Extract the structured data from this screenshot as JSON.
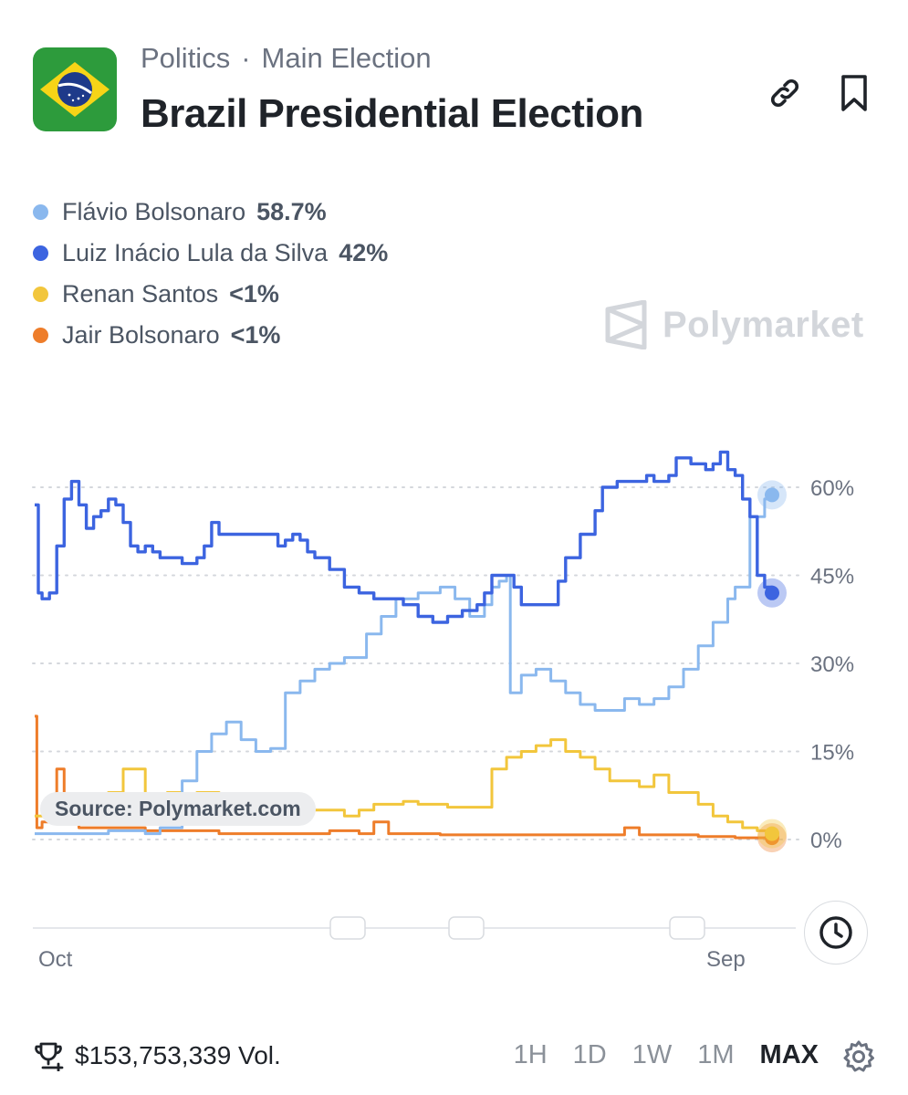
{
  "header": {
    "category": "Politics",
    "separator": "·",
    "subcategory": "Main Election",
    "title": "Brazil Presidential Election"
  },
  "icons": {
    "flag": "brazil-flag-icon",
    "link": "link-icon",
    "bookmark": "bookmark-icon",
    "brand": "polymarket-logo-icon",
    "clock": "clock-icon",
    "trophy": "trophy-icon",
    "settings": "gear-icon"
  },
  "legend": [
    {
      "name": "Flávio Bolsonaro",
      "value": "58.7%",
      "color": "#8ab8ee"
    },
    {
      "name": "Luiz Inácio Lula da Silva",
      "value": "42%",
      "color": "#3c64e0"
    },
    {
      "name": "Renan Santos",
      "value": "<1%",
      "color": "#f2c63c"
    },
    {
      "name": "Jair Bolsonaro",
      "value": "<1%",
      "color": "#ee7d2a"
    }
  ],
  "brand": {
    "name": "Polymarket"
  },
  "source_label": "Source: Polymarket.com",
  "chart_data": {
    "type": "line",
    "y_axis": {
      "min": 0,
      "max": 60,
      "ticks": [
        0,
        15,
        30,
        45,
        60
      ],
      "tick_labels": [
        "0%",
        "15%",
        "30%",
        "45%",
        "60%"
      ],
      "side": "right"
    },
    "x_axis": {
      "tick_labels": [
        "Oct",
        "Sep"
      ]
    },
    "grid": "dotted horizontal",
    "series": [
      {
        "name": "Flávio Bolsonaro",
        "color": "#8ab8ee",
        "last": 58.7,
        "points": [
          [
            0,
            1
          ],
          [
            0.02,
            1
          ],
          [
            0.05,
            1
          ],
          [
            0.08,
            1
          ],
          [
            0.1,
            1.5
          ],
          [
            0.12,
            1.5
          ],
          [
            0.15,
            1
          ],
          [
            0.17,
            2
          ],
          [
            0.2,
            10
          ],
          [
            0.22,
            15
          ],
          [
            0.24,
            18
          ],
          [
            0.26,
            20
          ],
          [
            0.28,
            17
          ],
          [
            0.3,
            15
          ],
          [
            0.32,
            15.5
          ],
          [
            0.34,
            25
          ],
          [
            0.36,
            27
          ],
          [
            0.38,
            29
          ],
          [
            0.4,
            30
          ],
          [
            0.42,
            31
          ],
          [
            0.45,
            35
          ],
          [
            0.47,
            38
          ],
          [
            0.49,
            41
          ],
          [
            0.52,
            42
          ],
          [
            0.55,
            43
          ],
          [
            0.57,
            41
          ],
          [
            0.59,
            38
          ],
          [
            0.61,
            40
          ],
          [
            0.62,
            43
          ],
          [
            0.63,
            44
          ],
          [
            0.64,
            45
          ],
          [
            0.645,
            25
          ],
          [
            0.66,
            28
          ],
          [
            0.68,
            29
          ],
          [
            0.7,
            27
          ],
          [
            0.72,
            25
          ],
          [
            0.74,
            23
          ],
          [
            0.76,
            22
          ],
          [
            0.78,
            22
          ],
          [
            0.8,
            24
          ],
          [
            0.82,
            23
          ],
          [
            0.84,
            24
          ],
          [
            0.86,
            26
          ],
          [
            0.88,
            29
          ],
          [
            0.9,
            33
          ],
          [
            0.92,
            37
          ],
          [
            0.94,
            41
          ],
          [
            0.95,
            43
          ],
          [
            0.97,
            55
          ],
          [
            0.99,
            58
          ],
          [
            1,
            58.7
          ]
        ]
      },
      {
        "name": "Luiz Inácio Lula da Silva",
        "color": "#3c64e0",
        "last": 42,
        "points": [
          [
            0,
            57
          ],
          [
            0.005,
            42
          ],
          [
            0.01,
            41
          ],
          [
            0.02,
            42
          ],
          [
            0.03,
            50
          ],
          [
            0.04,
            58
          ],
          [
            0.05,
            61
          ],
          [
            0.06,
            57
          ],
          [
            0.07,
            53
          ],
          [
            0.08,
            55
          ],
          [
            0.09,
            56
          ],
          [
            0.1,
            58
          ],
          [
            0.11,
            57
          ],
          [
            0.12,
            54
          ],
          [
            0.13,
            50
          ],
          [
            0.14,
            49
          ],
          [
            0.15,
            50
          ],
          [
            0.16,
            49
          ],
          [
            0.17,
            48
          ],
          [
            0.18,
            48
          ],
          [
            0.2,
            47
          ],
          [
            0.22,
            48
          ],
          [
            0.23,
            50
          ],
          [
            0.24,
            54
          ],
          [
            0.25,
            52
          ],
          [
            0.28,
            52
          ],
          [
            0.31,
            52
          ],
          [
            0.33,
            50
          ],
          [
            0.34,
            51
          ],
          [
            0.35,
            52
          ],
          [
            0.36,
            51
          ],
          [
            0.37,
            49
          ],
          [
            0.38,
            48
          ],
          [
            0.4,
            46
          ],
          [
            0.42,
            43
          ],
          [
            0.44,
            42
          ],
          [
            0.46,
            41
          ],
          [
            0.48,
            41
          ],
          [
            0.5,
            40
          ],
          [
            0.52,
            38
          ],
          [
            0.54,
            37
          ],
          [
            0.56,
            38
          ],
          [
            0.58,
            39
          ],
          [
            0.6,
            40
          ],
          [
            0.61,
            42
          ],
          [
            0.62,
            45
          ],
          [
            0.64,
            45
          ],
          [
            0.65,
            43
          ],
          [
            0.66,
            40
          ],
          [
            0.68,
            40
          ],
          [
            0.7,
            40
          ],
          [
            0.71,
            44
          ],
          [
            0.72,
            48
          ],
          [
            0.74,
            52
          ],
          [
            0.76,
            56
          ],
          [
            0.77,
            60
          ],
          [
            0.79,
            61
          ],
          [
            0.81,
            61
          ],
          [
            0.83,
            62
          ],
          [
            0.84,
            61
          ],
          [
            0.86,
            62
          ],
          [
            0.87,
            65
          ],
          [
            0.89,
            64
          ],
          [
            0.9,
            64
          ],
          [
            0.91,
            63
          ],
          [
            0.92,
            64
          ],
          [
            0.93,
            66
          ],
          [
            0.94,
            63
          ],
          [
            0.95,
            62
          ],
          [
            0.96,
            58
          ],
          [
            0.97,
            55
          ],
          [
            0.98,
            45
          ],
          [
            0.99,
            43
          ],
          [
            1,
            42
          ]
        ]
      },
      {
        "name": "Renan Santos",
        "color": "#f2c63c",
        "last": 1,
        "points": [
          [
            0,
            4
          ],
          [
            0.05,
            6
          ],
          [
            0.1,
            8
          ],
          [
            0.12,
            12
          ],
          [
            0.15,
            7
          ],
          [
            0.18,
            8
          ],
          [
            0.2,
            6
          ],
          [
            0.22,
            8
          ],
          [
            0.25,
            6
          ],
          [
            0.28,
            6
          ],
          [
            0.3,
            7
          ],
          [
            0.32,
            6
          ],
          [
            0.35,
            5
          ],
          [
            0.38,
            5
          ],
          [
            0.4,
            5
          ],
          [
            0.42,
            4
          ],
          [
            0.44,
            5
          ],
          [
            0.46,
            6
          ],
          [
            0.48,
            6
          ],
          [
            0.5,
            6.5
          ],
          [
            0.52,
            6
          ],
          [
            0.54,
            6
          ],
          [
            0.56,
            5.5
          ],
          [
            0.58,
            5.5
          ],
          [
            0.6,
            5.5
          ],
          [
            0.62,
            12
          ],
          [
            0.64,
            14
          ],
          [
            0.66,
            15
          ],
          [
            0.68,
            16
          ],
          [
            0.7,
            17
          ],
          [
            0.72,
            15
          ],
          [
            0.74,
            14
          ],
          [
            0.76,
            12
          ],
          [
            0.78,
            10
          ],
          [
            0.8,
            10
          ],
          [
            0.82,
            9
          ],
          [
            0.84,
            11
          ],
          [
            0.86,
            8
          ],
          [
            0.88,
            8
          ],
          [
            0.9,
            6
          ],
          [
            0.92,
            4
          ],
          [
            0.94,
            3
          ],
          [
            0.96,
            2
          ],
          [
            0.98,
            1.5
          ],
          [
            1,
            1
          ]
        ]
      },
      {
        "name": "Jair Bolsonaro",
        "color": "#ee7d2a",
        "last": 0.3,
        "points": [
          [
            0,
            21
          ],
          [
            0.003,
            2
          ],
          [
            0.01,
            3
          ],
          [
            0.02,
            4
          ],
          [
            0.03,
            12
          ],
          [
            0.04,
            3
          ],
          [
            0.06,
            2
          ],
          [
            0.1,
            2
          ],
          [
            0.15,
            1.5
          ],
          [
            0.2,
            1.5
          ],
          [
            0.25,
            1
          ],
          [
            0.3,
            1
          ],
          [
            0.35,
            1
          ],
          [
            0.4,
            1.5
          ],
          [
            0.44,
            1
          ],
          [
            0.46,
            3
          ],
          [
            0.48,
            1
          ],
          [
            0.5,
            1
          ],
          [
            0.55,
            0.8
          ],
          [
            0.6,
            0.8
          ],
          [
            0.65,
            0.8
          ],
          [
            0.7,
            0.8
          ],
          [
            0.75,
            0.8
          ],
          [
            0.78,
            0.8
          ],
          [
            0.8,
            2
          ],
          [
            0.82,
            0.8
          ],
          [
            0.85,
            0.8
          ],
          [
            0.9,
            0.5
          ],
          [
            0.95,
            0.3
          ],
          [
            1,
            0.3
          ]
        ]
      }
    ]
  },
  "footer": {
    "volume": "$153,753,339 Vol.",
    "ranges": [
      "1H",
      "1D",
      "1W",
      "1M",
      "MAX"
    ],
    "active_range": "MAX"
  }
}
